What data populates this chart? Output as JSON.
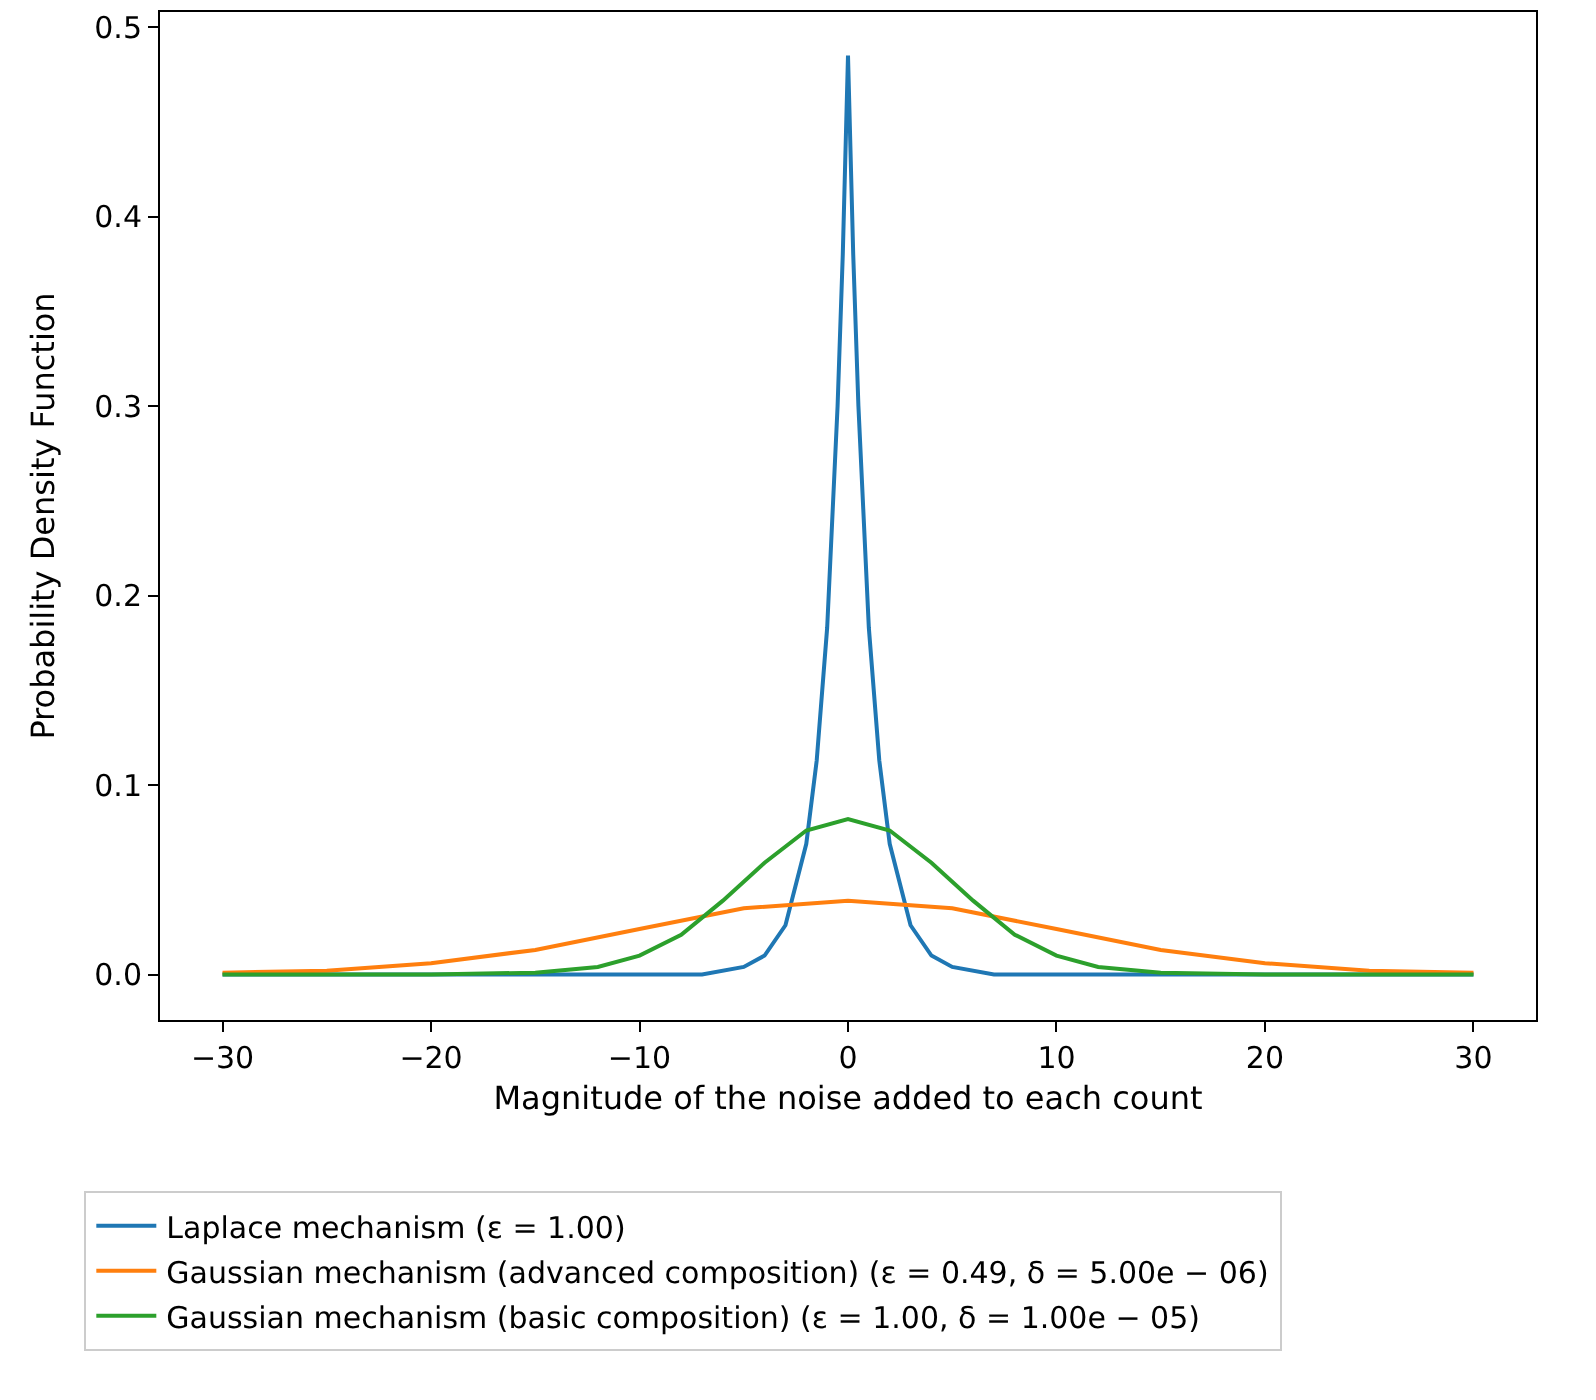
{
  "chart_data": {
    "type": "line",
    "xlabel": "Magnitude of the noise added to each count",
    "ylabel": "Probability Density Function",
    "xlim": [
      -33,
      33
    ],
    "ylim": [
      -0.024,
      0.508
    ],
    "xticks": [
      {
        "value": -30,
        "label": "−30"
      },
      {
        "value": -20,
        "label": "−20"
      },
      {
        "value": -10,
        "label": "−10"
      },
      0,
      10,
      20,
      30
    ],
    "yticks": [
      {
        "value": 0,
        "label": "0.0"
      },
      0.1,
      0.2,
      0.3,
      0.4,
      0.5
    ],
    "legend": "bottom",
    "marker": "none",
    "line_style": "solid",
    "series": [
      {
        "name": "Laplace mechanism (ε = 1.00)",
        "color": "#1f77b4",
        "x": [
          -30,
          -20,
          -10,
          -7,
          -5,
          -4,
          -3,
          -2,
          -1.5,
          -1,
          -0.5,
          -0.25,
          0,
          0.25,
          0.5,
          1,
          1.5,
          2,
          3,
          4,
          5,
          7,
          10,
          20,
          30
        ],
        "values": [
          0,
          0,
          0,
          0,
          0.004,
          0.01,
          0.026,
          0.069,
          0.113,
          0.183,
          0.3,
          0.38,
          0.485,
          0.38,
          0.3,
          0.183,
          0.113,
          0.069,
          0.026,
          0.01,
          0.004,
          0,
          0,
          0,
          0
        ]
      },
      {
        "name": "Gaussian mechanism (advanced composition) (ε = 0.49, δ = 5.00e − 06)",
        "color": "#ff7f0e",
        "x": [
          -30,
          -25,
          -20,
          -15,
          -10,
          -5,
          0,
          5,
          10,
          15,
          20,
          25,
          30
        ],
        "values": [
          0.001,
          0.002,
          0.006,
          0.013,
          0.024,
          0.035,
          0.039,
          0.035,
          0.024,
          0.013,
          0.006,
          0.002,
          0.001
        ]
      },
      {
        "name": "Gaussian mechanism (basic composition) (ε = 1.00, δ = 1.00e − 05)",
        "color": "#2ca02c",
        "x": [
          -30,
          -20,
          -15,
          -12,
          -10,
          -8,
          -6,
          -4,
          -2,
          0,
          2,
          4,
          6,
          8,
          10,
          12,
          15,
          20,
          30
        ],
        "values": [
          0,
          0,
          0.001,
          0.004,
          0.01,
          0.021,
          0.039,
          0.059,
          0.076,
          0.082,
          0.076,
          0.059,
          0.039,
          0.021,
          0.01,
          0.004,
          0.001,
          0,
          0
        ]
      }
    ]
  }
}
